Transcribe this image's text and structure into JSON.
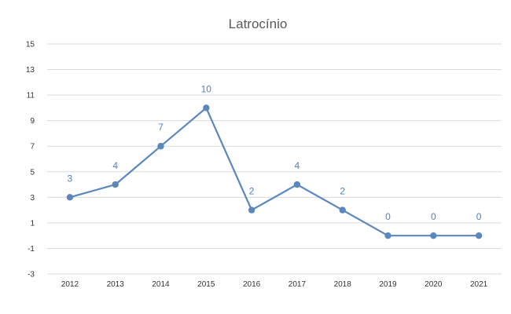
{
  "chart_data": {
    "type": "line",
    "title": "Latrocínio",
    "xlabel": "",
    "ylabel": "",
    "x": [
      "2012",
      "2013",
      "2014",
      "2015",
      "2016",
      "2017",
      "2018",
      "2019",
      "2020",
      "2021"
    ],
    "series": [
      {
        "values": [
          3,
          4,
          7,
          10,
          2,
          4,
          2,
          0,
          0,
          0
        ],
        "color": "#5b87bd"
      }
    ],
    "data_labels": [
      "3",
      "4",
      "7",
      "10",
      "2",
      "4",
      "2",
      "0",
      "0",
      "0"
    ],
    "yticks": [
      "15",
      "13",
      "11",
      "9",
      "7",
      "5",
      "3",
      "1",
      "-1",
      "-3"
    ],
    "ylim": [
      -3,
      15
    ],
    "grid": true,
    "legend": "none",
    "label_color": "#4f81bd"
  }
}
